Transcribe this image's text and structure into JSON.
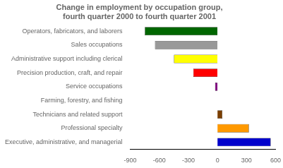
{
  "chart_data": {
    "type": "bar",
    "orientation": "horizontal",
    "title": "Change in employment by occupation group,\nfourth quarter 2000 to fourth quarter 2001",
    "categories": [
      "Operators, fabricators, and laborers",
      "Sales occupations",
      "Administrative support including clerical",
      "Precision production, craft, and repair",
      "Service occupations",
      "Farming, forestry, and fishing",
      "Technicians and related support",
      "Professional specialty",
      "Executive, administrative, and managerial"
    ],
    "values": [
      -750,
      -645,
      -450,
      -250,
      -25,
      0,
      50,
      325,
      550
    ],
    "colors": [
      "#006600",
      "#999999",
      "#ffff00",
      "#ff0000",
      "#800080",
      "#ffffff",
      "#7b3f00",
      "#ff9900",
      "#0000cc"
    ],
    "xlim": [
      -900,
      600
    ],
    "xticks": [
      -900,
      -600,
      -300,
      0,
      300,
      600
    ],
    "grid": false
  }
}
